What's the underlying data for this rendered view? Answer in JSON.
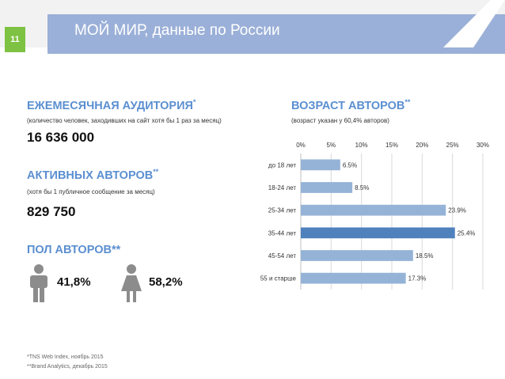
{
  "header": {
    "slide_number": "11",
    "title": "МОЙ МИР, данные по России"
  },
  "audience": {
    "title": "ЕЖЕМЕСЯЧНАЯ АУДИТОРИЯ",
    "title_mark": "*",
    "subtitle": "(количество человек, заходивших на сайт хотя бы 1 раз за месяц)",
    "value": "16 636 000"
  },
  "active": {
    "title": "АКТИВНЫХ АВТОРОВ",
    "title_mark": "**",
    "subtitle": "(хотя бы 1 публичное сообщение за месяц)",
    "value": "829 750"
  },
  "gender": {
    "title": "ПОЛ АВТОРОВ**",
    "male_pct": "41,8%",
    "female_pct": "58,2%",
    "male_icon": "male-person-icon",
    "female_icon": "female-person-icon"
  },
  "age": {
    "title": "ВОЗРАСТ АВТОРОВ",
    "title_mark": "**",
    "subtitle": "(возраст указан у 60,4% авторов)"
  },
  "footnotes": {
    "line1": "*TNS Web Index, ноябрь 2015",
    "line2": "**Brand Analytics, декабрь 2015"
  },
  "colors": {
    "accent_green": "#7dc242",
    "header_blue": "#9bb0d8",
    "title_blue": "#5b8fd0",
    "bar": "#95b3d7",
    "bar_highlight": "#4f81bd",
    "icon_gray": "#8c8c8c"
  },
  "chart_data": {
    "type": "bar",
    "orientation": "horizontal",
    "categories": [
      "до 18 лет",
      "18-24 лет",
      "25-34 лет",
      "35-44 лет",
      "45-54 лет",
      "55 и старше"
    ],
    "values": [
      6.5,
      8.5,
      23.9,
      25.4,
      18.5,
      17.3
    ],
    "value_labels": [
      "6.5%",
      "8.5%",
      "23.9%",
      "25.4%",
      "18.5%",
      "17.3%"
    ],
    "highlight_index": 3,
    "xlim": [
      0,
      30
    ],
    "ticks": [
      0,
      5,
      10,
      15,
      20,
      25,
      30
    ],
    "tick_labels": [
      "0%",
      "5%",
      "10%",
      "15%",
      "20%",
      "25%",
      "30%"
    ],
    "axis_position": "top",
    "grid": true,
    "legend": "none",
    "title": "",
    "xlabel": "",
    "ylabel": ""
  }
}
